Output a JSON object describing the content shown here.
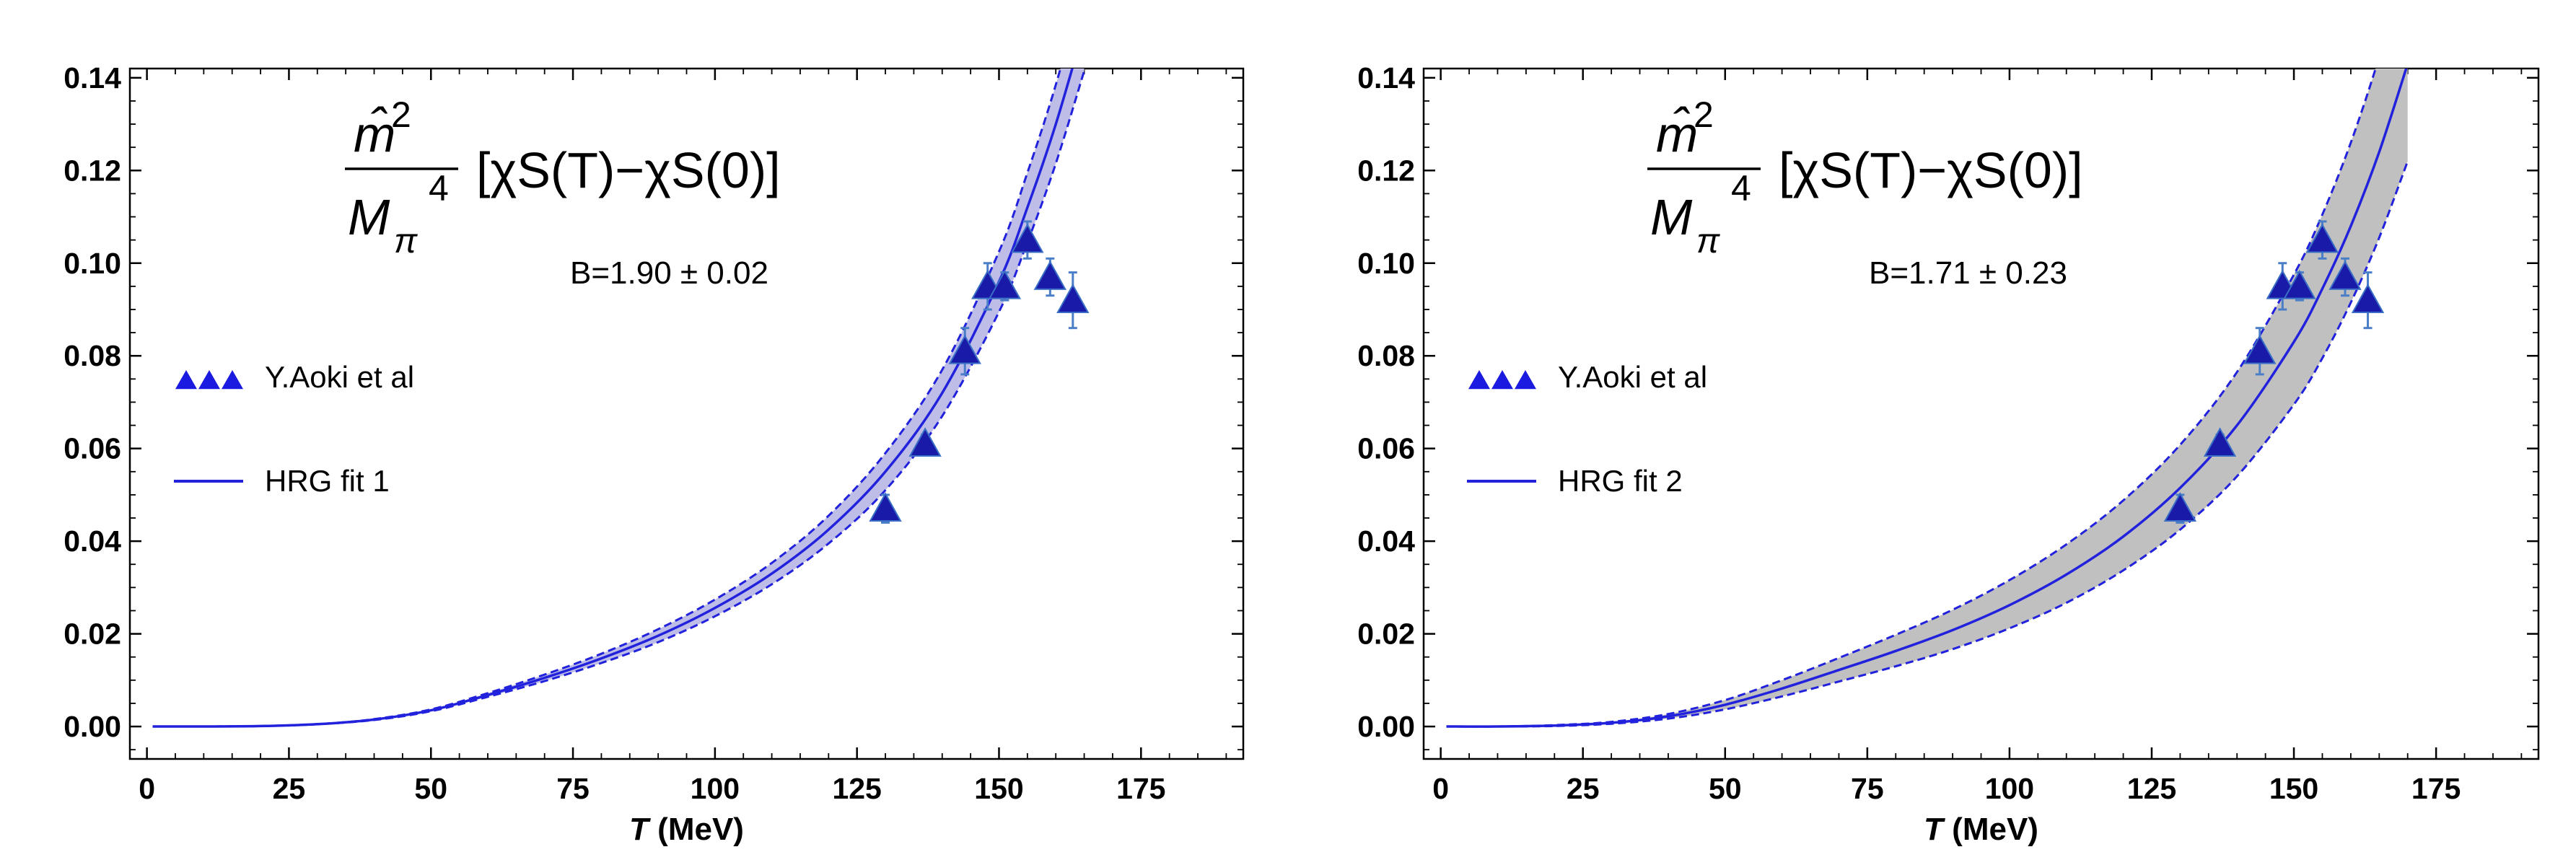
{
  "chart_data": [
    {
      "type": "line",
      "panel": "left",
      "title_formula": {
        "numerator": "m̂",
        "numerator_sup": "2",
        "denominator": "M",
        "denominator_sub": "π",
        "denominator_sup": "4",
        "bracket_expression": "[χS(T)−χS(0)]"
      },
      "annotation": "B=1.90 ± 0.02",
      "xlabel_italic": "T",
      "xlabel_unit": " (MeV)",
      "ylabel": "",
      "xlim": [
        -3,
        193
      ],
      "ylim": [
        -0.007,
        0.142
      ],
      "xticks": [
        0,
        25,
        50,
        75,
        100,
        125,
        150,
        175
      ],
      "xtick_labels": [
        "0",
        "25",
        "50",
        "75",
        "100",
        "125",
        "150",
        "175"
      ],
      "yticks": [
        0.0,
        0.02,
        0.04,
        0.06,
        0.08,
        0.1,
        0.12,
        0.14
      ],
      "ytick_labels": [
        "0.00",
        "0.02",
        "0.04",
        "0.06",
        "0.08",
        "0.10",
        "0.12",
        "0.14"
      ],
      "legend": [
        {
          "label": "Y.Aoki et al",
          "marker": "triangle"
        },
        {
          "label": "HRG fit 1",
          "marker": "line"
        }
      ],
      "series": [
        {
          "name": "Y.Aoki et al",
          "kind": "points",
          "x": [
            130,
            137,
            144,
            148,
            151,
            155,
            159,
            163
          ],
          "y": [
            0.047,
            0.061,
            0.081,
            0.095,
            0.095,
            0.105,
            0.097,
            0.092
          ],
          "err": [
            0.003,
            0.002,
            0.005,
            0.005,
            0.003,
            0.004,
            0.004,
            0.006
          ]
        },
        {
          "name": "HRG fit 1",
          "kind": "curve",
          "x": [
            1,
            10,
            20,
            30,
            40,
            50,
            60,
            70,
            80,
            90,
            100,
            110,
            120,
            130,
            140,
            150,
            155,
            160,
            165
          ],
          "y": [
            0.0,
            0.0,
            0.0001,
            0.0005,
            0.0015,
            0.0035,
            0.0068,
            0.0105,
            0.0147,
            0.0196,
            0.0256,
            0.033,
            0.0425,
            0.055,
            0.072,
            0.096,
            0.112,
            0.13,
            0.151
          ],
          "band_lower": [
            0.0,
            0.0,
            0.0001,
            0.0005,
            0.0014,
            0.0033,
            0.0064,
            0.0098,
            0.0137,
            0.0182,
            0.0238,
            0.0307,
            0.0395,
            0.051,
            0.067,
            0.0895,
            0.1045,
            0.1215,
            0.1415
          ],
          "band_upper": [
            0.0,
            0.0,
            0.0001,
            0.0005,
            0.0016,
            0.0037,
            0.0072,
            0.0112,
            0.0157,
            0.021,
            0.0274,
            0.0353,
            0.0455,
            0.059,
            0.077,
            0.1025,
            0.1195,
            0.1385,
            0.161
          ]
        }
      ]
    },
    {
      "type": "line",
      "panel": "right",
      "title_formula": {
        "numerator": "m̂",
        "numerator_sup": "2",
        "denominator": "M",
        "denominator_sub": "π",
        "denominator_sup": "4",
        "bracket_expression": "[χS(T)−χS(0)]"
      },
      "annotation": "B=1.71 ± 0.23",
      "xlabel_italic": "T",
      "xlabel_unit": " (MeV)",
      "ylabel": "",
      "xlim": [
        -3,
        193
      ],
      "ylim": [
        -0.007,
        0.142
      ],
      "xticks": [
        0,
        25,
        50,
        75,
        100,
        125,
        150,
        175
      ],
      "xtick_labels": [
        "0",
        "25",
        "50",
        "75",
        "100",
        "125",
        "150",
        "175"
      ],
      "yticks": [
        0.0,
        0.02,
        0.04,
        0.06,
        0.08,
        0.1,
        0.12,
        0.14
      ],
      "ytick_labels": [
        "0.00",
        "0.02",
        "0.04",
        "0.06",
        "0.08",
        "0.10",
        "0.12",
        "0.14"
      ],
      "legend": [
        {
          "label": "Y.Aoki et al",
          "marker": "triangle"
        },
        {
          "label": "HRG fit 2",
          "marker": "line"
        }
      ],
      "series": [
        {
          "name": "Y.Aoki et al",
          "kind": "points",
          "x": [
            130,
            137,
            144,
            148,
            151,
            155,
            159,
            163
          ],
          "y": [
            0.047,
            0.061,
            0.081,
            0.095,
            0.095,
            0.105,
            0.097,
            0.092
          ],
          "err": [
            0.003,
            0.002,
            0.005,
            0.005,
            0.003,
            0.004,
            0.004,
            0.006
          ]
        },
        {
          "name": "HRG fit 2",
          "kind": "curve",
          "x": [
            1,
            10,
            20,
            30,
            40,
            50,
            60,
            70,
            80,
            90,
            100,
            110,
            120,
            130,
            140,
            150,
            155,
            160,
            165,
            170
          ],
          "y": [
            0.0,
            0.0,
            0.0002,
            0.0008,
            0.0022,
            0.0047,
            0.0082,
            0.0122,
            0.0163,
            0.0208,
            0.0262,
            0.0328,
            0.041,
            0.0515,
            0.065,
            0.083,
            0.0945,
            0.108,
            0.124,
            0.143
          ],
          "band_lower": [
            0.0,
            0.0,
            0.0001,
            0.0006,
            0.0017,
            0.0037,
            0.0065,
            0.0097,
            0.013,
            0.0167,
            0.0212,
            0.0267,
            0.0337,
            0.0425,
            0.054,
            0.0695,
            0.0795,
            0.0915,
            0.1055,
            0.122
          ],
          "band_upper": [
            0.0,
            0.0,
            0.0003,
            0.001,
            0.0027,
            0.0057,
            0.01,
            0.0148,
            0.0198,
            0.0252,
            0.0316,
            0.0393,
            0.0488,
            0.0608,
            0.0765,
            0.0975,
            0.1105,
            0.126,
            0.1445,
            0.166
          ]
        }
      ]
    }
  ],
  "colors": {
    "curve": "#2222dd",
    "marker_fill": "#1a1aa8",
    "marker_stroke": "#3b6fc6",
    "errorbar": "#4a7fc8",
    "band_left": "#bdbde8",
    "band_right": "#c0c0c0",
    "axis": "#000000"
  }
}
